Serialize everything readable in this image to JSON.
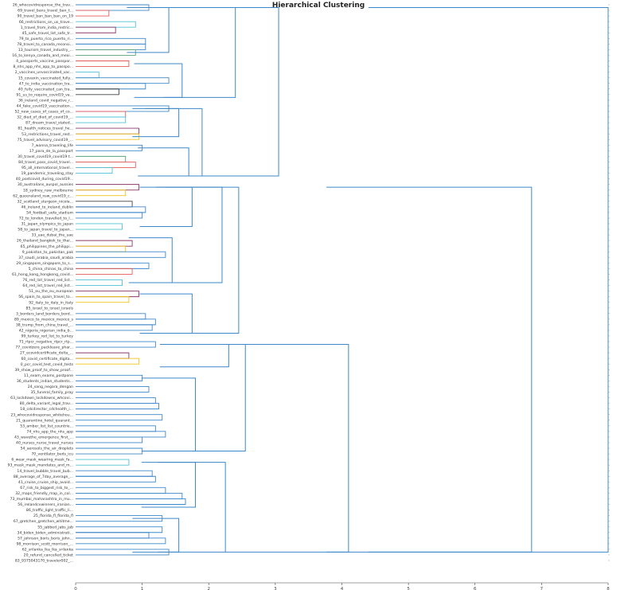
{
  "chart_data": {
    "type": "dendrogram",
    "title": "Hierarchical Clustering",
    "orientation": "horizontal",
    "xlim": [
      0,
      8
    ],
    "x_ticks": [
      0,
      1,
      2,
      3,
      4,
      5,
      6,
      7,
      8
    ],
    "grid": false,
    "colors": {
      "link": "#3d88c9",
      "clusters": [
        "#5aa47a",
        "#e55a5a",
        "#4fc3d6",
        "#8b3a6b",
        "#f0c419",
        "#404040"
      ]
    },
    "leaves": [
      "26_whocovidresponse_the_trav...",
      "69_travel_bans_travel_ban_t...",
      "90_travel_ban_ban_ban_on_19",
      "66_restrictions_on_us_trave...",
      "1_travel_from_india_restric...",
      "45_safe_travel_list_safe_tr...",
      "79_to_puerto_rico_puerto_ri...",
      "78_travel_to_canada_reconsi...",
      "13_tourism_travel_industry_...",
      "16_to_kenya_canada_and_mexi...",
      "4_passports_vaccine_passpor...",
      "8_nhs_app_nhs_app_to_passpo...",
      "2_vaccines_unvaccinated_vac...",
      "15_covaxin_vaccinated_fully...",
      "47_to_india_vaccination_tra...",
      "40_fully_vaccinated_can_tra...",
      "91_us_to_require_covid19_va...",
      "36_ireland_covid_negative_r...",
      "44_fake_covid19_vaccination...",
      "52_new_cases_of_cases_of_co...",
      "32_died_of_died_of_covid19_...",
      "87_dream_travel_stated...",
      "81_health_notices_travel_he...",
      "53_restrictions_travel_rest...",
      "75_travel_advisory_covid19_...",
      "7_wanna_traveling_life",
      "17_para_de_la_passport",
      "30_travel_covid19_covid19 t...",
      "84_travel_pass_covid_travel...",
      "95_all_international_travel...",
      "19_pandemic_traveling_stay",
      "40_postcovid_during_covid19...",
      "30_australians_auspol_aussies",
      "18_sydney_nsw_melbourne",
      "62_queensland_nsw_covid19_c...",
      "32_scotland_sturgeon_nicola...",
      "46_ireland_to_ireland_dublin",
      "54_football_uefa_stadium",
      "72_to_london_travelled_to_l...",
      "31_japan_olympics_to_japan",
      "58_to_japan_travel_to_japan...",
      "33_uae_dubai_the_uae",
      "26_thailand_bangkok_to_thai...",
      "65_philippines_the_philippi...",
      "9_pakistan_to_pakistan_pak",
      "37_saudi_arabia_saudi_arabia",
      "29_singapore_singapore_to_s...",
      "5_china_chinas_to_china",
      "61_hong_kong_hongkong_covid...",
      "76_red_list_travel_red_list...",
      "64_red_list_travel_red_list...",
      "51_eu_the_eu_european",
      "56_spain_to_spain_travel_to...",
      "92_italy_to_italy_in_italy",
      "85_israel_to_israel_israels",
      "3_borders_land_borders_bord...",
      "89_mexico_to_mexico_mexico_s",
      "38_trump_from_china_travel_...",
      "42_nigeria_nigerian_india_b...",
      "99_turkey_red_list_to_turkey",
      "71_rtpcr_negative_rtpcr_rtp...",
      "77_covidzero_packleave_phar...",
      "27_ecovidcertificate_delta_...",
      "60_covid_certificate_digita...",
      "0_pcr_covid_test_covid_tests",
      "39_show_proof_to_show_proof...",
      "11_exam_exams_postpone",
      "36_students_indian_students...",
      "24_sang_negara_dengan",
      "35_funeral_family_pray",
      "63_lockdown_lockdowns_whcovi...",
      "80_delta_variant_legal_trav...",
      "18_cdcdirector_cdchealth_i...",
      "23_whocovidresponse_whitehou...",
      "21_quarantine_hotel_quarant...",
      "53_amber_list_list_countrie...",
      "74_nhs_app_the_nhs_app",
      "43_wavethe_emergence_first_...",
      "40_nurses_nurse_travel_nurses",
      "54_aerosols_the_air_droplets",
      "70_ventilator_beds_icu",
      "6_wear_mask_wearing_mask_fa...",
      "93_mask_mask_mandates_and_m...",
      "14_travel_bubble_travel_bub...",
      "88_average_of_7day_average_...",
      "41_cruise_cruise_ship_avoid...",
      "67_risk_to_biggest_risk_to_...",
      "32_maps_friendly_map_in_col...",
      "73_mumbai_maharashtra_in_mu...",
      "56_irelandcvwinners_iranian...",
      "86_traffic_light_traffic_li...",
      "25_florida_fl_florida_fl",
      "67_gretchen_gretchen_whitme...",
      "55_jabbed_jabs_jab",
      "34_biden_biden_administrati...",
      "57_johnson_boris_boris_john...",
      "98_morrison_scott_morrison_...",
      "62_srilanka_lka_lka_srilanka",
      "20_refund_cancelled_ticket",
      "83_9375043170_traveler002_..."
    ],
    "merges": [
      [
        0,
        1,
        1.1
      ],
      [
        1,
        2,
        0.5
      ],
      [
        3,
        4,
        0.9
      ],
      [
        4,
        5,
        0.6
      ],
      [
        6,
        7,
        1.05
      ],
      [
        7,
        8,
        1.05
      ],
      [
        8,
        9,
        0.9
      ],
      [
        10,
        11,
        0.8
      ],
      [
        12,
        13,
        0.35
      ],
      [
        13,
        14,
        1.4
      ],
      [
        14,
        15,
        1.05
      ],
      [
        15,
        16,
        0.65
      ],
      [
        18,
        19,
        1.4
      ],
      [
        19,
        20,
        0.75
      ],
      [
        20,
        21,
        0.75
      ],
      [
        22,
        23,
        0.95
      ],
      [
        23,
        24,
        0.95
      ],
      [
        25,
        26,
        1.0
      ],
      [
        27,
        28,
        0.75
      ],
      [
        28,
        29,
        0.9
      ],
      [
        29,
        30,
        0.55
      ],
      [
        32,
        33,
        0.95
      ],
      [
        33,
        34,
        0.75
      ],
      [
        35,
        36,
        0.85
      ],
      [
        36,
        37,
        1.05
      ],
      [
        37,
        38,
        1.0
      ],
      [
        39,
        40,
        0.7
      ],
      [
        42,
        43,
        0.85
      ],
      [
        43,
        44,
        0.75
      ],
      [
        44,
        45,
        1.35
      ],
      [
        46,
        47,
        1.1
      ],
      [
        47,
        48,
        0.85
      ],
      [
        49,
        50,
        0.7
      ],
      [
        51,
        52,
        0.95
      ],
      [
        52,
        53,
        0.8
      ],
      [
        55,
        56,
        1.05
      ],
      [
        56,
        57,
        1.2
      ],
      [
        57,
        58,
        1.15
      ],
      [
        60,
        61,
        1.2
      ],
      [
        62,
        63,
        0.8
      ],
      [
        63,
        64,
        0.95
      ],
      [
        66,
        67,
        1.0
      ],
      [
        68,
        69,
        1.1
      ],
      [
        70,
        71,
        1.2
      ],
      [
        71,
        72,
        1.25
      ],
      [
        73,
        74,
        1.3
      ],
      [
        75,
        76,
        1.2
      ],
      [
        76,
        77,
        1.35
      ],
      [
        77,
        78,
        1.0
      ],
      [
        79,
        80,
        1.0
      ],
      [
        81,
        82,
        0.8
      ],
      [
        83,
        84,
        1.15
      ],
      [
        84,
        85,
        1.2
      ],
      [
        86,
        87,
        1.35
      ],
      [
        87,
        88,
        1.6
      ],
      [
        88,
        89,
        1.65
      ],
      [
        91,
        92,
        1.3
      ],
      [
        93,
        94,
        1.3
      ],
      [
        94,
        95,
        1.1
      ],
      [
        95,
        96,
        1.35
      ],
      [
        97,
        98,
        1.4
      ]
    ]
  }
}
